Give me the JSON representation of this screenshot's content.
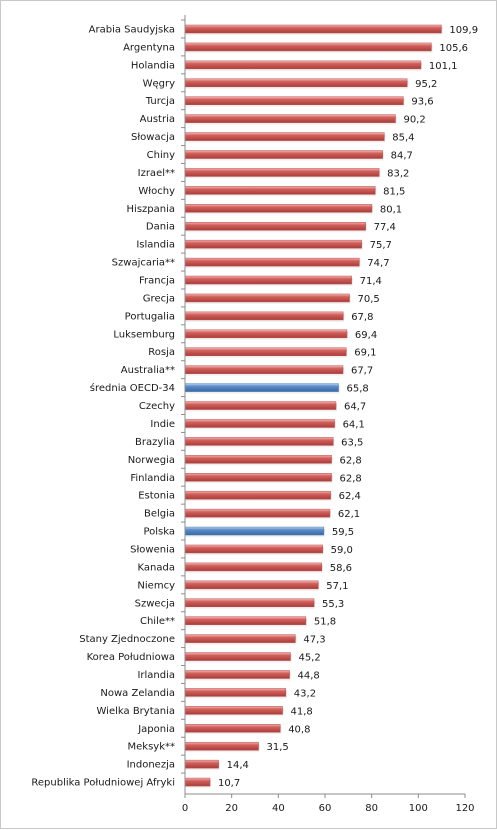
{
  "chart_data": {
    "type": "bar",
    "orientation": "horizontal",
    "categories": [
      "Arabia Saudyjska",
      "Argentyna",
      "Holandia",
      "Węgry",
      "Turcja",
      "Austria",
      "Słowacja",
      "Chiny",
      "Izrael**",
      "Włochy",
      "Hiszpania",
      "Dania",
      "Islandia",
      "Szwajcaria**",
      "Francja",
      "Grecja",
      "Portugalia",
      "Luksemburg",
      "Rosja",
      "Australia**",
      "średnia OECD-34",
      "Czechy",
      "Indie",
      "Brazylia",
      "Norwegia",
      "Finlandia",
      "Estonia",
      "Belgia",
      "Polska",
      "Słowenia",
      "Kanada",
      "Niemcy",
      "Szwecja",
      "Chile**",
      "Stany Zjednoczone",
      "Korea Południowa",
      "Irlandia",
      "Nowa Zelandia",
      "Wielka Brytania",
      "Japonia",
      "Meksyk**",
      "Indonezja",
      "Republika Południowej Afryki"
    ],
    "values": [
      109.9,
      105.6,
      101.1,
      95.2,
      93.6,
      90.2,
      85.4,
      84.7,
      83.2,
      81.5,
      80.1,
      77.4,
      75.7,
      74.7,
      71.4,
      70.5,
      67.8,
      69.4,
      69.1,
      67.7,
      65.8,
      64.7,
      64.1,
      63.5,
      62.8,
      62.8,
      62.4,
      62.1,
      59.5,
      59.0,
      58.6,
      57.1,
      55.3,
      51.8,
      47.3,
      45.2,
      44.8,
      43.2,
      41.8,
      40.8,
      31.5,
      14.4,
      10.7
    ],
    "value_labels": [
      "109,9",
      "105,6",
      "101,1",
      "95,2",
      "93,6",
      "90,2",
      "85,4",
      "84,7",
      "83,2",
      "81,5",
      "80,1",
      "77,4",
      "75,7",
      "74,7",
      "71,4",
      "70,5",
      "67,8",
      "69,4",
      "69,1",
      "67,7",
      "65,8",
      "64,7",
      "64,1",
      "63,5",
      "62,8",
      "62,8",
      "62,4",
      "62,1",
      "59,5",
      "59,0",
      "58,6",
      "57,1",
      "55,3",
      "51,8",
      "47,3",
      "45,2",
      "44,8",
      "43,2",
      "41,8",
      "40,8",
      "31,5",
      "14,4",
      "10,7"
    ],
    "highlighted": [
      "średnia OECD-34",
      "Polska"
    ],
    "xlim": [
      0,
      120
    ],
    "x_ticks": [
      "0",
      "20",
      "40",
      "60",
      "80",
      "100",
      "120"
    ],
    "grid": false,
    "colors": {
      "default_bar": "#c0504d",
      "highlight_bar": "#4f81bd"
    }
  }
}
